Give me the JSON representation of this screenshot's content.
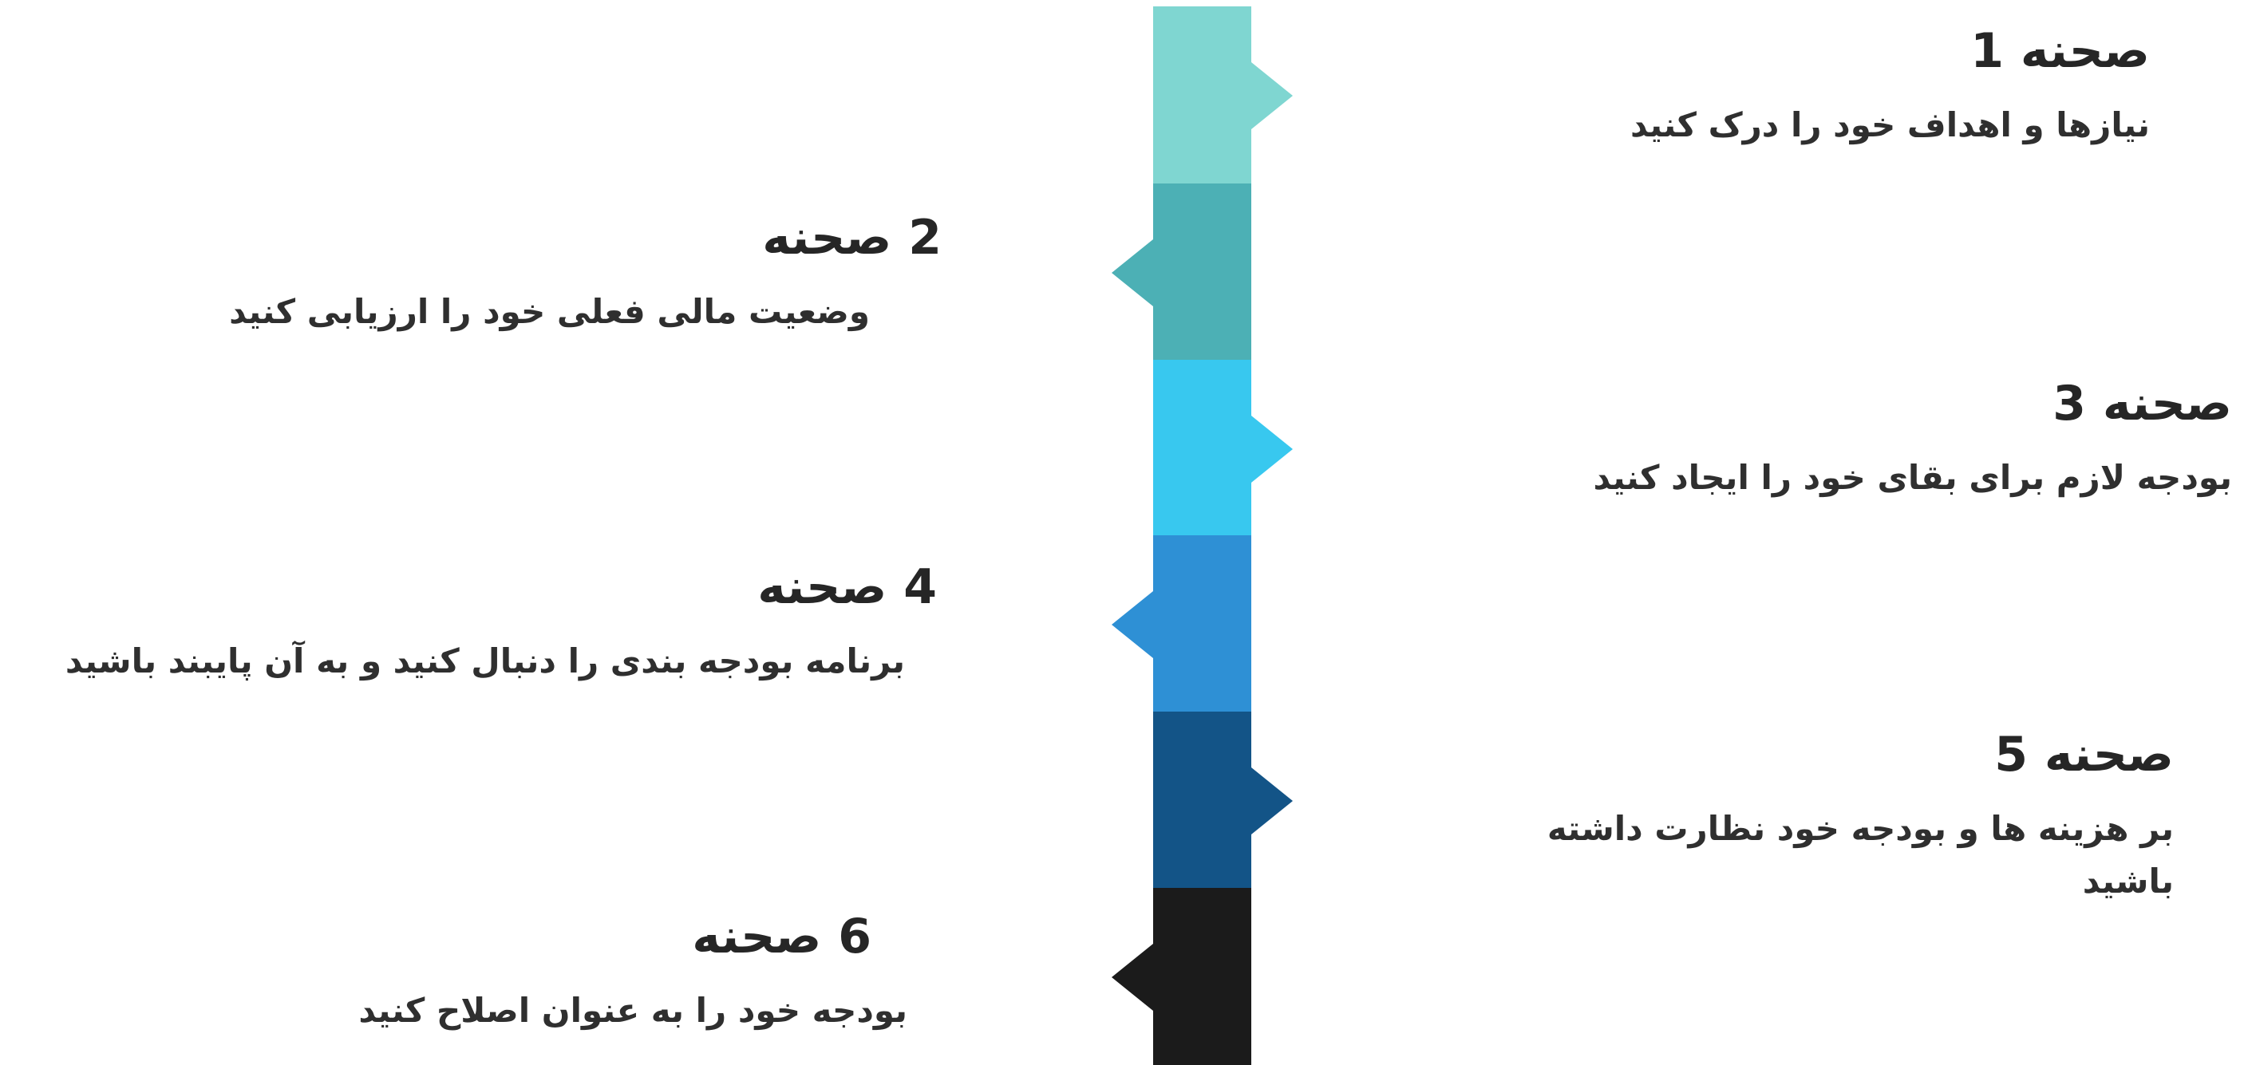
{
  "stages": [
    {
      "title": "صحنه 1",
      "description": "نیازها و اهداف خود را درک کنید",
      "color": "#7fd6d1",
      "side": "right"
    },
    {
      "title": "2 صحنه",
      "description": "وضعیت مالی فعلی خود را ارزیابی کنید",
      "color": "#4cb0b5",
      "side": "left"
    },
    {
      "title": "صحنه 3",
      "description": "بودجه لازم برای بقای خود را ایجاد کنید",
      "color": "#38c8ef",
      "side": "right"
    },
    {
      "title": "4 صحنه",
      "description": "برنامه بودجه بندی را دنبال کنید و به آن پایبند باشید",
      "color": "#2e90d5",
      "side": "left"
    },
    {
      "title": "صحنه 5",
      "description": "بر هزینه ها و بودجه خود نظارت داشته باشید",
      "color": "#135487",
      "side": "right"
    },
    {
      "title": "6 صحنه",
      "description": "بودجه خود را به عنوان اصلاح کنید",
      "color": "#1b1b1b",
      "side": "left"
    }
  ]
}
